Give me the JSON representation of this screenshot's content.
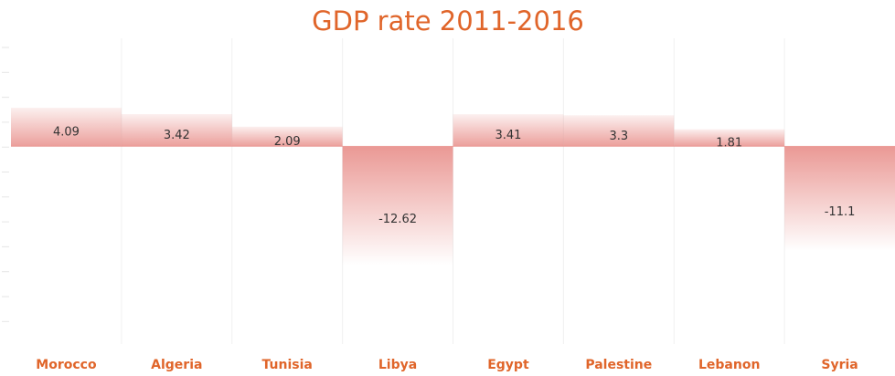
{
  "chart_data": {
    "type": "bar",
    "title": "GDP rate 2011-2016",
    "categories": [
      "Morocco",
      "Algeria",
      "Tunisia",
      "Libya",
      "Egypt",
      "Palestine",
      "Lebanon",
      "Syria"
    ],
    "values": [
      4.09,
      3.42,
      2.09,
      -12.62,
      3.41,
      3.3,
      1.81,
      -11.1
    ],
    "color": "#e57f7a",
    "ylim": [
      -21,
      10.5
    ]
  }
}
